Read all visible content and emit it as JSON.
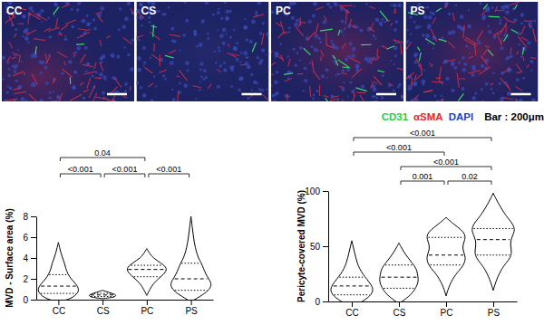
{
  "image_panels": {
    "labels": [
      "CC",
      "CS",
      "PC",
      "PS"
    ],
    "legend": [
      {
        "text": "CD31",
        "color": "#2ecc40"
      },
      {
        "text": "αSMA",
        "color": "#e8262a"
      },
      {
        "text": "DAPI",
        "color": "#1f3fbf"
      },
      {
        "text": "Bar : 200μm",
        "color": "#000000"
      }
    ]
  },
  "chart_data": [
    {
      "type": "violin",
      "y_label": "MVD - Surface area (%)",
      "categories": [
        "CC",
        "CS",
        "PC",
        "PS"
      ],
      "ylim": [
        0,
        8
      ],
      "yticks": [
        0,
        2,
        4,
        6,
        8
      ],
      "profiles": [
        {
          "y": [
            -0.2,
            0,
            0.5,
            1,
            1.5,
            2,
            2.5,
            3,
            3.5,
            4,
            4.5,
            5,
            5.5
          ],
          "density": [
            0,
            0.5,
            0.9,
            1,
            0.85,
            0.6,
            0.45,
            0.35,
            0.3,
            0.2,
            0.12,
            0.06,
            0
          ]
        },
        {
          "y": [
            0.1,
            0.2,
            0.3,
            0.4,
            0.5,
            0.6,
            0.7,
            0.8,
            0.9
          ],
          "density": [
            0,
            0.45,
            0.6,
            0.65,
            0.6,
            0.45,
            0.3,
            0.15,
            0
          ]
        },
        {
          "y": [
            0.4,
            1,
            1.5,
            2,
            2.5,
            3,
            3.5,
            4,
            4.5,
            4.9
          ],
          "density": [
            0,
            0.15,
            0.3,
            0.55,
            0.85,
            1,
            0.7,
            0.3,
            0.12,
            0
          ]
        },
        {
          "y": [
            -0.2,
            0.5,
            1,
            1.5,
            2,
            2.5,
            3,
            3.5,
            4,
            5,
            6,
            7,
            8
          ],
          "density": [
            0,
            0.6,
            0.9,
            1,
            0.85,
            0.7,
            0.6,
            0.5,
            0.35,
            0.2,
            0.12,
            0.06,
            0
          ]
        }
      ],
      "quartiles": [
        {
          "q1": 0.6,
          "median": 1.3,
          "q3": 2.4
        },
        {
          "q1": 0.3,
          "median": 0.45,
          "q3": 0.6
        },
        {
          "q1": 2.2,
          "median": 2.9,
          "q3": 3.3
        },
        {
          "q1": 0.9,
          "median": 2.0,
          "q3": 3.5
        }
      ],
      "comparisons": [
        {
          "groups": [
            "CC",
            "CS"
          ],
          "label": "<0.001"
        },
        {
          "groups": [
            "CS",
            "PC"
          ],
          "label": "<0.001"
        },
        {
          "groups": [
            "PC",
            "PS"
          ],
          "label": "<0.001"
        },
        {
          "groups": [
            "CC",
            "PC"
          ],
          "label": "0.04"
        }
      ]
    },
    {
      "type": "violin",
      "y_label": "Pericyte-covered MVD (%)",
      "categories": [
        "CC",
        "CS",
        "PC",
        "PS"
      ],
      "ylim": [
        0,
        100
      ],
      "yticks": [
        0,
        50,
        100
      ],
      "profiles": [
        {
          "y": [
            -5,
            0,
            5,
            10,
            15,
            20,
            25,
            30,
            35,
            40,
            45,
            50,
            55
          ],
          "density": [
            0,
            0.5,
            0.85,
            1,
            0.9,
            0.7,
            0.5,
            0.35,
            0.25,
            0.18,
            0.12,
            0.06,
            0
          ]
        },
        {
          "y": [
            -2,
            5,
            10,
            15,
            20,
            25,
            30,
            35,
            40,
            45,
            50,
            53
          ],
          "density": [
            0,
            0.5,
            0.7,
            0.85,
            0.9,
            0.85,
            0.8,
            0.6,
            0.4,
            0.22,
            0.08,
            0
          ]
        },
        {
          "y": [
            5,
            15,
            25,
            30,
            35,
            40,
            45,
            50,
            55,
            60,
            65,
            70,
            76
          ],
          "density": [
            0,
            0.15,
            0.45,
            0.7,
            0.85,
            0.9,
            0.8,
            0.75,
            0.85,
            0.9,
            0.7,
            0.35,
            0
          ]
        },
        {
          "y": [
            10,
            20,
            30,
            35,
            40,
            45,
            50,
            55,
            60,
            65,
            70,
            75,
            80,
            90,
            98
          ],
          "density": [
            0,
            0.15,
            0.4,
            0.6,
            0.8,
            0.85,
            0.8,
            0.8,
            0.9,
            1,
            0.9,
            0.7,
            0.5,
            0.2,
            0
          ]
        }
      ],
      "quartiles": [
        {
          "q1": 6,
          "median": 14,
          "q3": 22
        },
        {
          "q1": 12,
          "median": 22,
          "q3": 33
        },
        {
          "q1": 33,
          "median": 42,
          "q3": 58
        },
        {
          "q1": 42,
          "median": 56,
          "q3": 66
        }
      ],
      "comparisons": [
        {
          "groups": [
            "CS",
            "PC"
          ],
          "label": "0.001"
        },
        {
          "groups": [
            "PC",
            "PS"
          ],
          "label": "0.02"
        },
        {
          "groups": [
            "CS",
            "PS"
          ],
          "label": "<0.001"
        },
        {
          "groups": [
            "CC",
            "PC"
          ],
          "label": "<0.001"
        },
        {
          "groups": [
            "CC",
            "PS"
          ],
          "label": "<0.001"
        }
      ]
    }
  ]
}
